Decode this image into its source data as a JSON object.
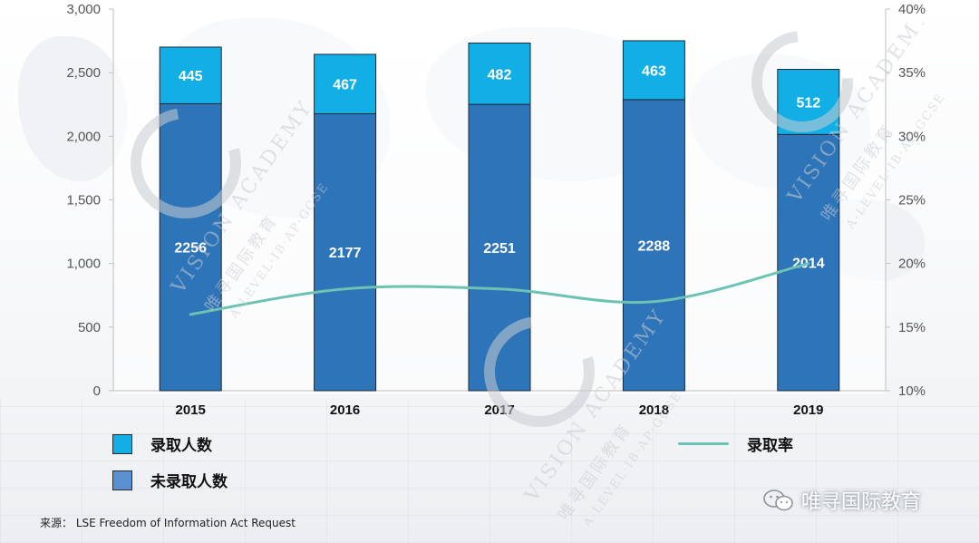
{
  "chart_data": {
    "type": "bar",
    "categories": [
      "2015",
      "2016",
      "2017",
      "2018",
      "2019"
    ],
    "series": [
      {
        "name": "未录取人数",
        "values": [
          2256,
          2177,
          2251,
          2288,
          2014
        ],
        "color": "#2e74b8",
        "axis": "left"
      },
      {
        "name": "录取人数",
        "values": [
          445,
          467,
          482,
          463,
          512
        ],
        "color": "#12aee6",
        "axis": "left"
      },
      {
        "name": "录取率",
        "type": "line",
        "values": [
          0.16,
          0.18,
          0.18,
          0.17,
          0.2
        ],
        "color": "#6cc3b3",
        "axis": "right"
      }
    ],
    "stacked": true,
    "y_left": {
      "min": 0,
      "max": 3000,
      "ticks": [
        "0",
        "500",
        "1,000",
        "1,500",
        "2,000",
        "2,500",
        "3,000"
      ]
    },
    "y_right": {
      "min": 0.1,
      "max": 0.4,
      "ticks": [
        "10%",
        "15%",
        "20%",
        "25%",
        "30%",
        "35%",
        "40%"
      ]
    },
    "legend_position": "bottom",
    "grid": false
  },
  "legend": {
    "admitted": "录取人数",
    "rejected": "未录取人数",
    "rate": "录取率"
  },
  "source": "来源：  LSE Freedom of Information Act Request",
  "brand": "唯寻国际教育",
  "watermark": {
    "main": "VISION ACADEMY",
    "cn": "唯寻国际教育",
    "sub": "A-LEVEL·IB·AP·GCSE"
  },
  "colors": {
    "admitted": "#12aee6",
    "rejected": "#2e74b8",
    "rate": "#6cc3b3"
  }
}
